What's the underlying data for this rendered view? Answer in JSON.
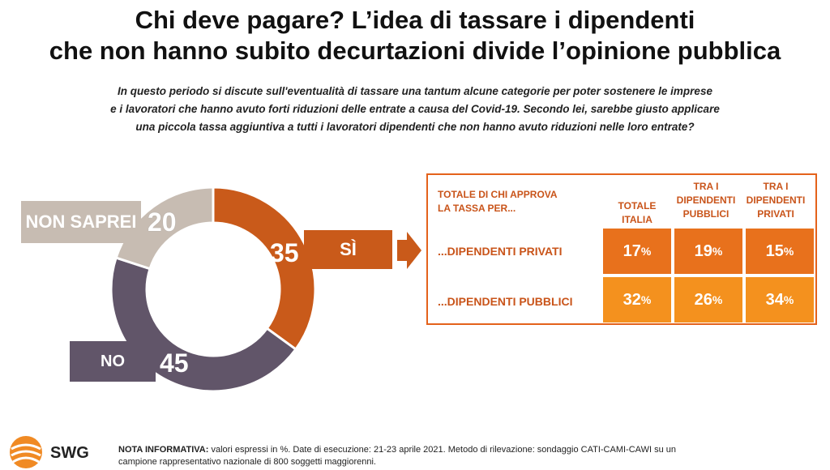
{
  "header": {
    "title_line1": "Chi deve pagare? L’idea di tassare i dipendenti",
    "title_line2": "che non hanno subito decurtazioni divide l’opinione pubblica",
    "question_lines": [
      "In questo periodo si discute sull'eventualità di tassare una tantum alcune categorie per poter sostenere le imprese",
      "e i lavoratori che hanno avuto forti riduzioni delle entrate a causa del Covid-19. Secondo lei, sarebbe giusto applicare",
      "una piccola tassa aggiuntiva a tutti i lavoratori dipendenti che non hanno avuto riduzioni nelle loro entrate?"
    ]
  },
  "chart_data": [
    {
      "type": "pie",
      "variant": "donut",
      "categories": [
        "SÌ",
        "NO",
        "NON SAPREI"
      ],
      "values": [
        35,
        45,
        20
      ],
      "colors": [
        "#c95a1a",
        "#615569",
        "#c7bcb2"
      ],
      "labels": {
        "si": "SÌ",
        "no": "NO",
        "non_saprei": "NON SAPREI"
      },
      "value_labels": {
        "si": "35",
        "no": "45",
        "non_saprei": "20"
      }
    },
    {
      "type": "table",
      "header": {
        "main": [
          "TOTALE DI CHI APPROVA",
          "LA TASSA PER..."
        ],
        "columns": [
          [
            "TOTALE",
            "ITALIA"
          ],
          [
            "TRA I",
            "DIPENDENTI",
            "PUBBLICI"
          ],
          [
            "TRA I",
            "DIPENDENTI",
            "PRIVATI"
          ]
        ]
      },
      "rows": [
        {
          "label": "...DIPENDENTI PRIVATI",
          "values": [
            "17",
            "19",
            "15"
          ],
          "color": "#e8711c"
        },
        {
          "label": "...DIPENDENTI PUBBLICI",
          "values": [
            "32",
            "26",
            "34"
          ],
          "color": "#f4911e"
        }
      ],
      "unit": "%"
    }
  ],
  "footer": {
    "note_bold": "NOTA INFORMATIVA:",
    "note_text": " valori espressi in %. Date di esecuzione: 21-23 aprile 2021. Metodo di rilevazione: sondaggio CATI-CAMI-CAWI su un",
    "note_line2": "campione rappresentativo nazionale di 800 soggetti maggiorenni.",
    "logo_text": "SWG"
  },
  "colors": {
    "accent": "#e4621b",
    "si": "#c95a1a",
    "no": "#615569",
    "non_saprei": "#c7bcb2"
  }
}
